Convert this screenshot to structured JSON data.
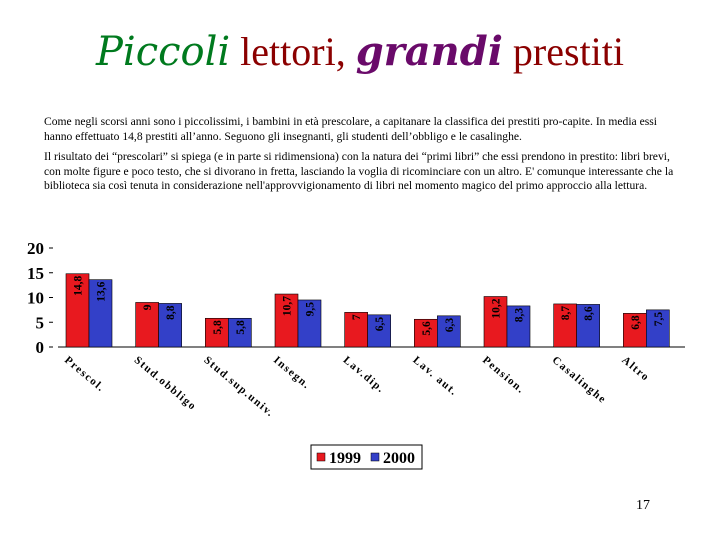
{
  "title": {
    "part1": "Piccoli",
    "part2": " lettori, ",
    "part3": "grandi",
    "part4": " prestiti"
  },
  "paragraphs": [
    "Come negli scorsi anni sono i piccolissimi, i bambini in età prescolare, a capitanare la classifica dei prestiti pro-capite. In media essi hanno effettuato 14,8 prestiti all’anno. Seguono gli insegnanti, gli studenti dell’obbligo e le casalinghe.",
    "Il risultato dei “prescolari” si spiega (e in parte si ridimensiona) con la natura dei “primi libri” che essi prendono in prestito: libri brevi, con molte figure e poco testo, che si divorano in fretta, lasciando la voglia di ricominciare con un altro. E' comunque interessante che la biblioteca sia così tenuta in considerazione nell'approvvigionamento di libri nel momento magico del primo approccio alla lettura."
  ],
  "page_number": "17",
  "colors": {
    "series_1999": "#e8191f",
    "series_2000": "#3340c8"
  },
  "chart_data": {
    "type": "bar",
    "categories": [
      "Prescol.",
      "Stud.obbligo",
      "Stud.sup.univ.",
      "Insegn.",
      "Lav.dip.",
      "Lav. aut.",
      "Pension.",
      "Casalinghe",
      "Altro"
    ],
    "series": [
      {
        "name": "1999",
        "values": [
          14.8,
          9,
          5.8,
          10.7,
          7,
          5.6,
          10.2,
          8.7,
          6.8
        ],
        "labels": [
          "14,8",
          "9",
          "5,8",
          "10,7",
          "7",
          "5,6",
          "10,2",
          "8,7",
          "6,8"
        ]
      },
      {
        "name": "2000",
        "values": [
          13.6,
          8.8,
          5.8,
          9.5,
          6.5,
          6.3,
          8.3,
          8.6,
          7.5
        ],
        "labels": [
          "13,6",
          "8,8",
          "5,8",
          "9,5",
          "6,5",
          "6,3",
          "8,3",
          "8,6",
          "7,5"
        ]
      }
    ],
    "yticks": [
      "0",
      "5",
      "10",
      "15",
      "20"
    ],
    "ylim": [
      0,
      20
    ],
    "grid": false,
    "legend_position": "bottom-center"
  }
}
